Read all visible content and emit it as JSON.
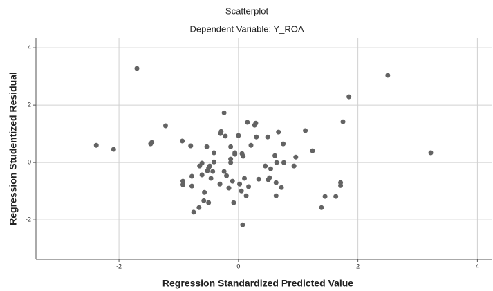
{
  "chart_data": {
    "type": "scatter",
    "title": "Scatterplot",
    "subtitle": "Dependent Variable: Y_ROA",
    "x_label": "Regression Standardized Predicted Value",
    "y_label": "Regression Studentized Residual",
    "color": "#636363",
    "grid": true,
    "xlim": [
      -3.39,
      4.25
    ],
    "ylim": [
      -3.37,
      4.34
    ],
    "xticks": [
      -2,
      0,
      2,
      4
    ],
    "yticks": [
      -2,
      0,
      2,
      4
    ],
    "x": [
      -2.38,
      -2.09,
      -1.7,
      -1.47,
      -1.45,
      -1.22,
      -0.94,
      -0.93,
      -0.93,
      -0.8,
      -0.78,
      -0.78,
      -0.75,
      -0.66,
      -0.65,
      -0.61,
      -0.61,
      -0.57,
      -0.58,
      -0.53,
      -0.5,
      -0.5,
      -0.48,
      -0.52,
      -0.46,
      -0.41,
      -0.41,
      -0.43,
      -0.31,
      -0.3,
      -0.29,
      -0.24,
      -0.24,
      -0.22,
      -0.2,
      -0.16,
      -0.13,
      -0.13,
      -0.13,
      -0.1,
      -0.06,
      -0.06,
      -0.08,
      0.0,
      0.02,
      0.05,
      0.06,
      0.08,
      0.07,
      0.1,
      0.13,
      0.15,
      0.17,
      0.21,
      0.27,
      0.29,
      0.3,
      0.34,
      0.45,
      0.49,
      0.5,
      0.52,
      0.54,
      0.61,
      0.64,
      0.63,
      0.63,
      0.67,
      0.72,
      0.76,
      0.75,
      0.93,
      0.96,
      1.12,
      1.24,
      1.39,
      1.45,
      1.63,
      1.71,
      1.71,
      1.75,
      1.85,
      2.5,
      3.22
    ],
    "values": [
      0.6,
      0.46,
      3.28,
      0.65,
      0.7,
      1.28,
      0.75,
      -0.65,
      -0.77,
      0.58,
      -0.48,
      -0.82,
      -1.73,
      -1.57,
      -0.12,
      -0.02,
      -0.43,
      -1.04,
      -1.33,
      0.55,
      -1.4,
      -0.19,
      -0.12,
      -0.29,
      -0.55,
      0.34,
      0.02,
      -0.31,
      -0.75,
      1.01,
      1.08,
      1.73,
      -0.31,
      0.92,
      -0.46,
      -0.89,
      0.55,
      0.12,
      0.0,
      -0.65,
      0.29,
      0.34,
      -1.4,
      0.94,
      -0.75,
      -0.99,
      0.31,
      0.22,
      -2.17,
      -0.55,
      -1.16,
      1.4,
      -0.84,
      0.6,
      1.3,
      1.37,
      0.89,
      -0.58,
      -0.12,
      0.89,
      -0.6,
      -0.53,
      -0.22,
      0.24,
      0.0,
      -0.7,
      -1.16,
      1.06,
      -0.87,
      0.0,
      0.65,
      -0.12,
      0.19,
      1.11,
      0.41,
      -1.57,
      -1.18,
      -1.18,
      -0.7,
      -0.8,
      1.42,
      2.29,
      3.04,
      0.34
    ]
  }
}
